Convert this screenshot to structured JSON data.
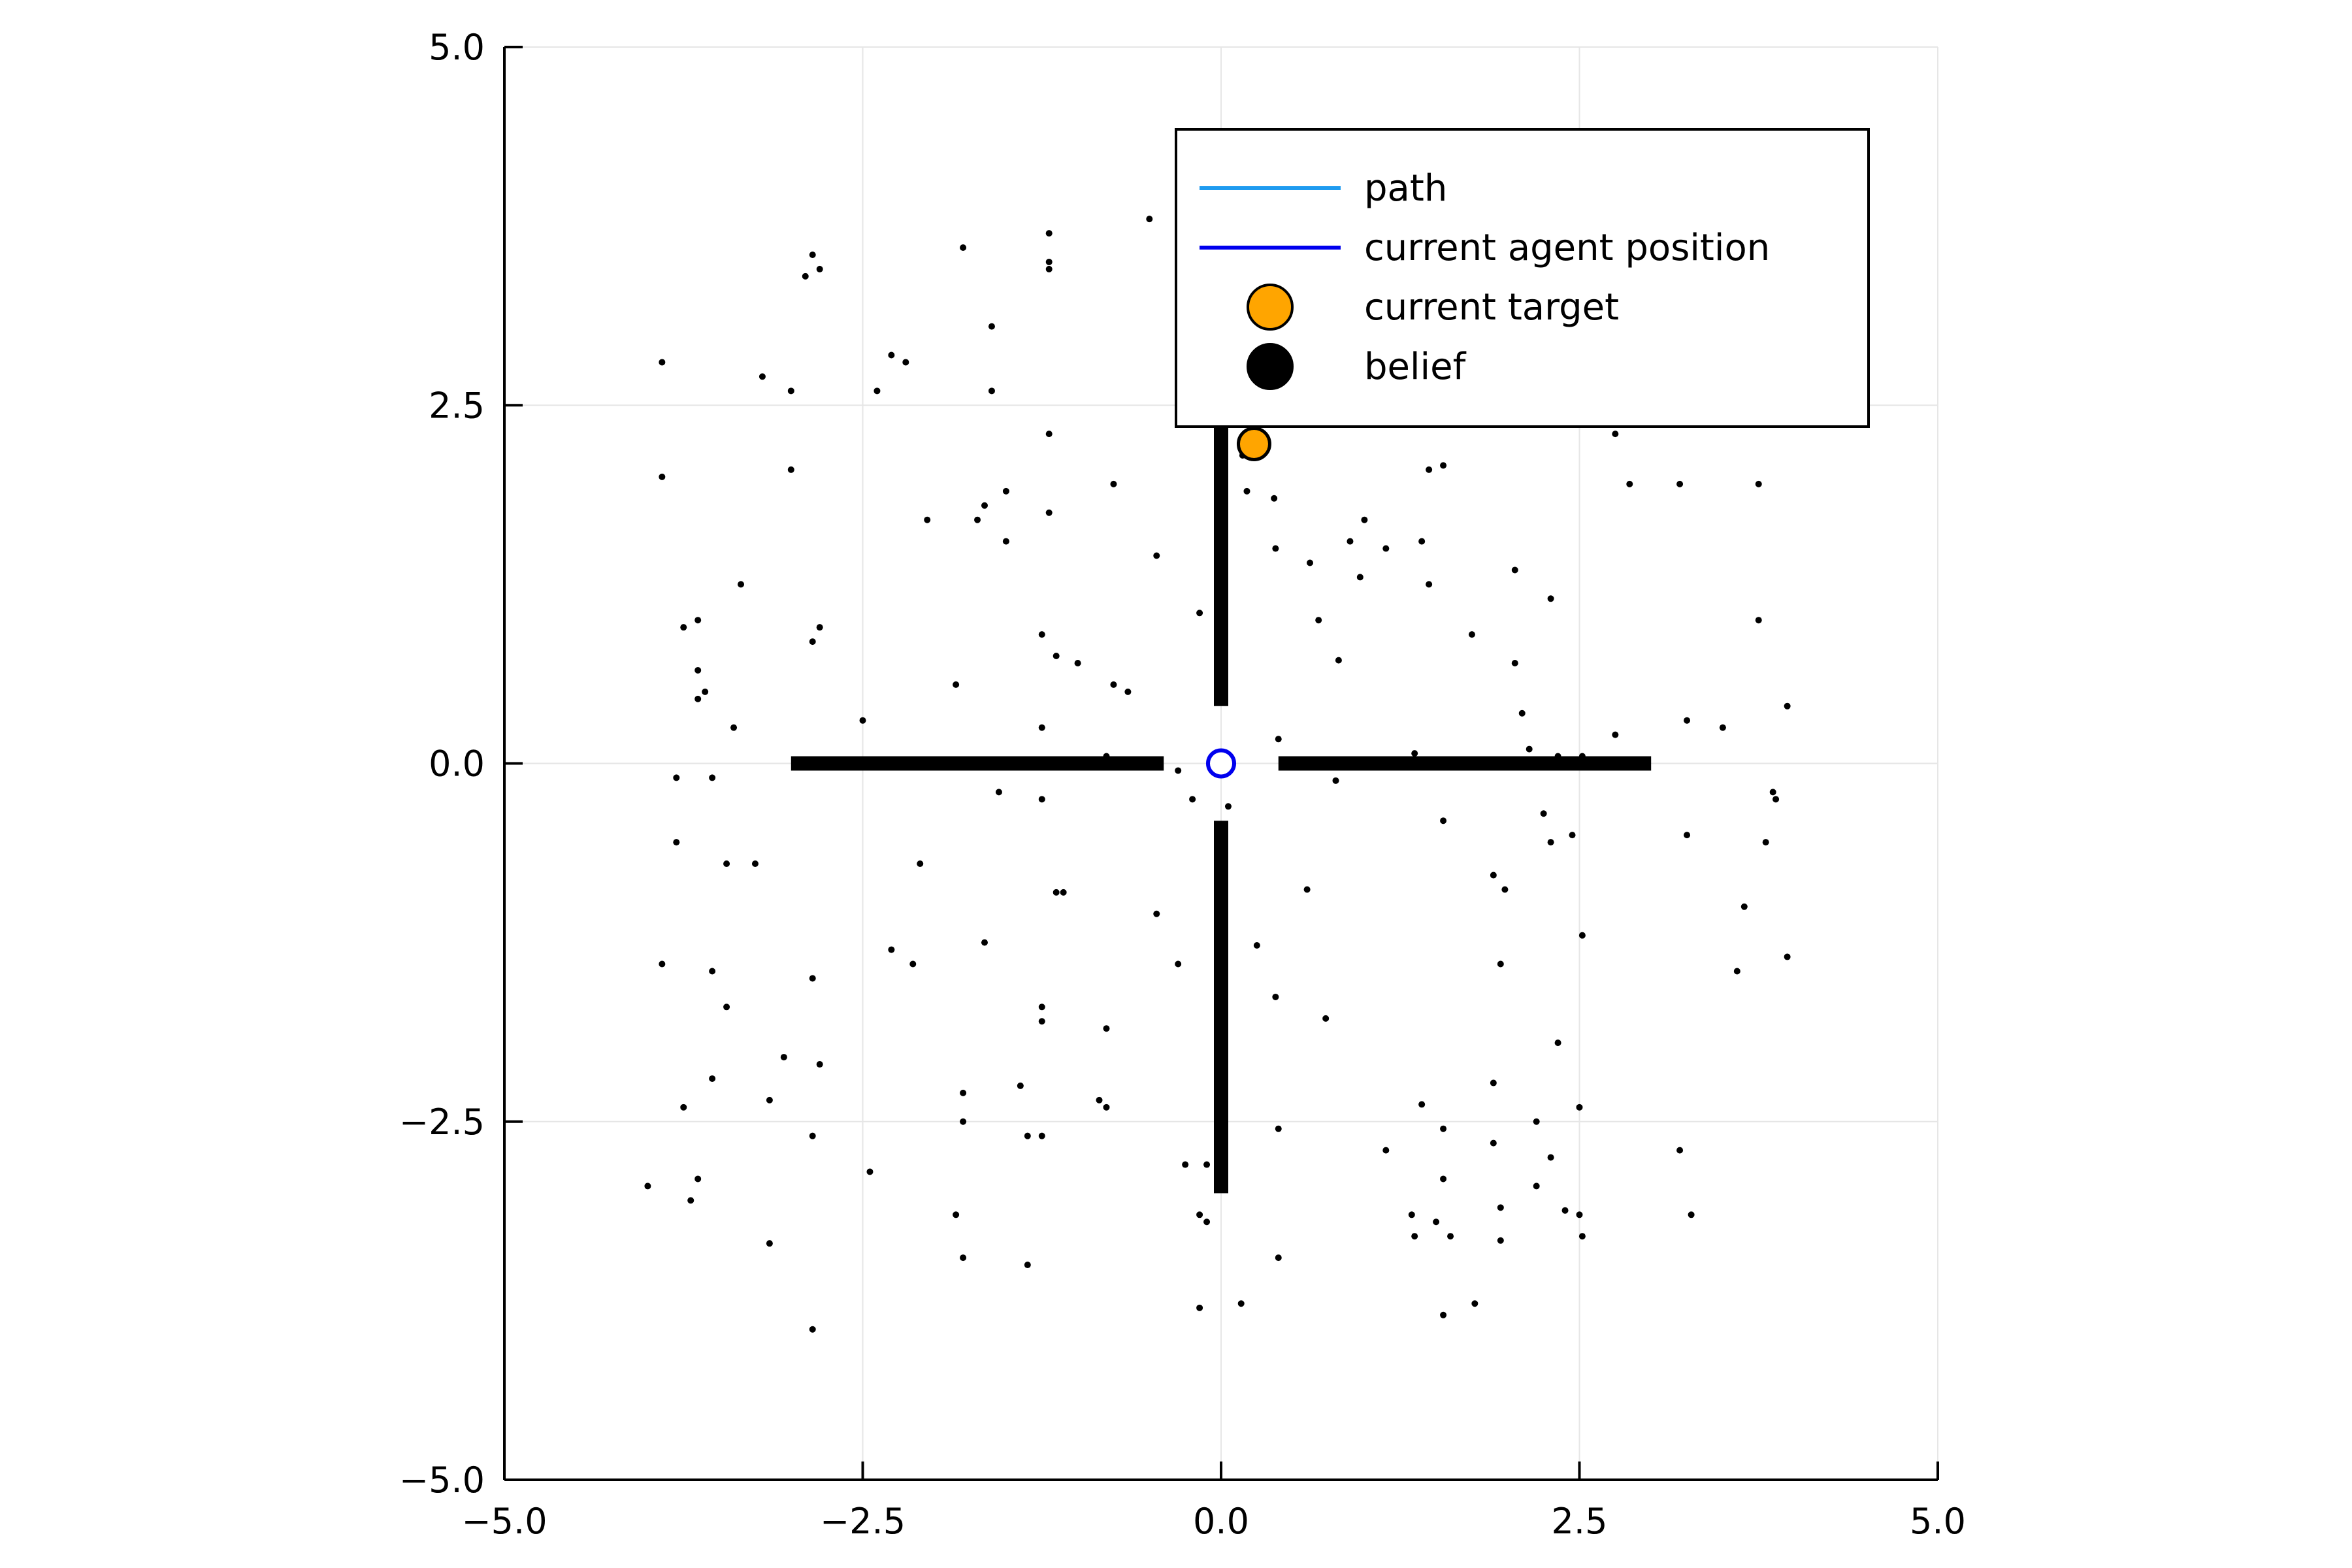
{
  "chart_data": {
    "type": "scatter",
    "title": "",
    "xlabel": "",
    "ylabel": "",
    "xlim": [
      -5.0,
      5.0
    ],
    "ylim": [
      -5.0,
      5.0
    ],
    "xticks": [
      "-5.0",
      "-2.5",
      "0.0",
      "2.5",
      "5.0"
    ],
    "yticks": [
      "-5.0",
      "-2.5",
      "0.0",
      "2.5",
      "5.0"
    ],
    "grid": true,
    "legend_position": "top-right",
    "colors": {
      "path": "#1f9bf0",
      "agent": "#0000ee",
      "target": "#ffa500",
      "belief": "#000000",
      "grid": "#e6e6e6"
    },
    "legend": [
      {
        "label": "path",
        "kind": "line",
        "color": "#1f9bf0"
      },
      {
        "label": "current agent position",
        "kind": "line",
        "color": "#0000ee"
      },
      {
        "label": "current target",
        "kind": "marker",
        "color": "#ffa500"
      },
      {
        "label": "belief",
        "kind": "marker",
        "color": "#000000"
      }
    ],
    "walls": [
      {
        "x": [
          -3.0,
          -0.4
        ],
        "y": [
          0.0,
          0.0
        ]
      },
      {
        "x": [
          0.4,
          3.0
        ],
        "y": [
          0.0,
          0.0
        ]
      },
      {
        "x": [
          0.0,
          0.0
        ],
        "y": [
          0.4,
          2.35
        ]
      },
      {
        "x": [
          0.0,
          0.0
        ],
        "y": [
          -0.4,
          -3.0
        ]
      }
    ],
    "agent": {
      "x": 0.0,
      "y": 0.0
    },
    "target": {
      "x": 0.23,
      "y": 2.23
    },
    "belief": [
      [
        -2.9,
        3.4
      ],
      [
        -2.8,
        3.45
      ],
      [
        -2.85,
        3.55
      ],
      [
        -1.8,
        3.6
      ],
      [
        -1.2,
        3.7
      ],
      [
        -1.2,
        3.45
      ],
      [
        -1.2,
        3.5
      ],
      [
        -0.5,
        3.8
      ],
      [
        -3.9,
        2.8
      ],
      [
        -3.2,
        2.7
      ],
      [
        -3.0,
        2.6
      ],
      [
        -2.4,
        2.6
      ],
      [
        -2.3,
        2.85
      ],
      [
        -2.2,
        2.8
      ],
      [
        -1.6,
        3.05
      ],
      [
        -1.6,
        2.6
      ],
      [
        -3.9,
        2.0
      ],
      [
        -3.0,
        2.05
      ],
      [
        -1.2,
        2.3
      ],
      [
        -0.75,
        1.95
      ],
      [
        -2.05,
        1.7
      ],
      [
        -1.7,
        1.7
      ],
      [
        -1.65,
        1.8
      ],
      [
        -1.5,
        1.9
      ],
      [
        -1.5,
        1.55
      ],
      [
        -1.2,
        1.75
      ],
      [
        -0.45,
        1.45
      ],
      [
        -3.35,
        1.25
      ],
      [
        -3.75,
        0.95
      ],
      [
        -3.65,
        1.0
      ],
      [
        -2.85,
        0.85
      ],
      [
        -2.8,
        0.95
      ],
      [
        -3.65,
        0.65
      ],
      [
        -3.6,
        0.5
      ],
      [
        -3.65,
        0.45
      ],
      [
        -1.85,
        0.55
      ],
      [
        -1.25,
        0.9
      ],
      [
        -1.15,
        0.75
      ],
      [
        -1.0,
        0.7
      ],
      [
        -0.75,
        0.55
      ],
      [
        -0.65,
        0.5
      ],
      [
        -3.4,
        0.25
      ],
      [
        -2.5,
        0.3
      ],
      [
        -1.25,
        0.25
      ],
      [
        -0.8,
        0.05
      ],
      [
        -0.3,
        -0.05
      ],
      [
        -3.8,
        -0.1
      ],
      [
        -3.55,
        -0.1
      ],
      [
        -1.55,
        -0.2
      ],
      [
        -1.25,
        -0.25
      ],
      [
        -0.2,
        -0.25
      ],
      [
        -3.8,
        -0.55
      ],
      [
        -3.45,
        -0.7
      ],
      [
        -3.25,
        -0.7
      ],
      [
        -2.1,
        -0.7
      ],
      [
        -1.15,
        -0.9
      ],
      [
        -1.1,
        -0.9
      ],
      [
        -0.45,
        -1.05
      ],
      [
        -3.9,
        -1.4
      ],
      [
        -3.55,
        -1.45
      ],
      [
        -3.45,
        -1.7
      ],
      [
        -2.85,
        -1.5
      ],
      [
        -2.3,
        -1.3
      ],
      [
        -2.15,
        -1.4
      ],
      [
        -1.65,
        -1.25
      ],
      [
        -1.25,
        -1.8
      ],
      [
        -1.25,
        -1.7
      ],
      [
        -0.8,
        -1.85
      ],
      [
        -0.3,
        -1.4
      ],
      [
        -3.55,
        -2.2
      ],
      [
        -3.15,
        -2.35
      ],
      [
        -3.05,
        -2.05
      ],
      [
        -2.8,
        -2.1
      ],
      [
        -3.75,
        -2.4
      ],
      [
        -2.85,
        -2.6
      ],
      [
        -1.8,
        -2.3
      ],
      [
        -1.8,
        -2.5
      ],
      [
        -1.4,
        -2.25
      ],
      [
        -1.35,
        -2.6
      ],
      [
        -1.25,
        -2.6
      ],
      [
        -0.85,
        -2.35
      ],
      [
        -0.8,
        -2.4
      ],
      [
        -4.0,
        -2.95
      ],
      [
        -3.65,
        -2.9
      ],
      [
        -3.7,
        -3.05
      ],
      [
        -2.45,
        -2.85
      ],
      [
        -0.25,
        -2.8
      ],
      [
        -0.1,
        -2.8
      ],
      [
        -1.85,
        -3.15
      ],
      [
        -1.8,
        -3.45
      ],
      [
        -0.15,
        -3.15
      ],
      [
        -0.1,
        -3.2
      ],
      [
        -3.15,
        -3.35
      ],
      [
        -1.35,
        -3.5
      ],
      [
        -0.15,
        -3.8
      ],
      [
        -2.85,
        -3.95
      ],
      [
        0.15,
        2.15
      ],
      [
        0.18,
        1.9
      ],
      [
        0.37,
        1.85
      ],
      [
        0.38,
        1.5
      ],
      [
        0.62,
        1.4
      ],
      [
        0.9,
        1.55
      ],
      [
        0.97,
        1.3
      ],
      [
        1.0,
        1.7
      ],
      [
        1.15,
        1.5
      ],
      [
        1.4,
        1.55
      ],
      [
        1.45,
        1.25
      ],
      [
        1.45,
        2.05
      ],
      [
        1.55,
        2.08
      ],
      [
        2.05,
        1.35
      ],
      [
        2.3,
        1.15
      ],
      [
        2.85,
        1.95
      ],
      [
        3.2,
        1.95
      ],
      [
        3.75,
        1.95
      ],
      [
        2.75,
        2.3
      ],
      [
        -0.15,
        1.05
      ],
      [
        0.68,
        1.0
      ],
      [
        0.82,
        0.72
      ],
      [
        1.75,
        0.9
      ],
      [
        2.05,
        0.7
      ],
      [
        3.75,
        1.0
      ],
      [
        2.1,
        0.35
      ],
      [
        2.15,
        0.1
      ],
      [
        2.35,
        0.05
      ],
      [
        2.52,
        0.05
      ],
      [
        2.75,
        0.2
      ],
      [
        3.25,
        0.3
      ],
      [
        3.5,
        0.25
      ],
      [
        3.95,
        0.4
      ],
      [
        0.4,
        0.17
      ],
      [
        1.35,
        0.07
      ],
      [
        0.8,
        -0.12
      ],
      [
        1.55,
        -0.4
      ],
      [
        2.25,
        -0.35
      ],
      [
        2.3,
        -0.55
      ],
      [
        2.45,
        -0.5
      ],
      [
        3.25,
        -0.5
      ],
      [
        3.8,
        -0.55
      ],
      [
        3.85,
        -0.2
      ],
      [
        3.87,
        -0.25
      ],
      [
        0.05,
        -0.3
      ],
      [
        0.6,
        -0.88
      ],
      [
        1.9,
        -0.78
      ],
      [
        1.98,
        -0.88
      ],
      [
        3.65,
        -1.0
      ],
      [
        2.52,
        -1.2
      ],
      [
        3.95,
        -1.35
      ],
      [
        3.6,
        -1.45
      ],
      [
        0.25,
        -1.27
      ],
      [
        0.38,
        -1.63
      ],
      [
        0.73,
        -1.78
      ],
      [
        1.95,
        -1.4
      ],
      [
        2.35,
        -1.95
      ],
      [
        1.9,
        -2.23
      ],
      [
        2.5,
        -2.4
      ],
      [
        2.2,
        -2.5
      ],
      [
        1.4,
        -2.38
      ],
      [
        1.55,
        -2.55
      ],
      [
        0.4,
        -2.55
      ],
      [
        1.15,
        -2.7
      ],
      [
        1.9,
        -2.65
      ],
      [
        2.3,
        -2.75
      ],
      [
        3.2,
        -2.7
      ],
      [
        1.55,
        -2.9
      ],
      [
        2.2,
        -2.95
      ],
      [
        1.95,
        -3.1
      ],
      [
        2.4,
        -3.12
      ],
      [
        2.5,
        -3.15
      ],
      [
        3.28,
        -3.15
      ],
      [
        1.33,
        -3.15
      ],
      [
        1.5,
        -3.2
      ],
      [
        1.35,
        -3.3
      ],
      [
        1.6,
        -3.3
      ],
      [
        1.95,
        -3.33
      ],
      [
        2.52,
        -3.3
      ],
      [
        0.4,
        -3.45
      ],
      [
        0.14,
        -3.77
      ],
      [
        1.55,
        -3.85
      ],
      [
        1.77,
        -3.77
      ]
    ]
  }
}
